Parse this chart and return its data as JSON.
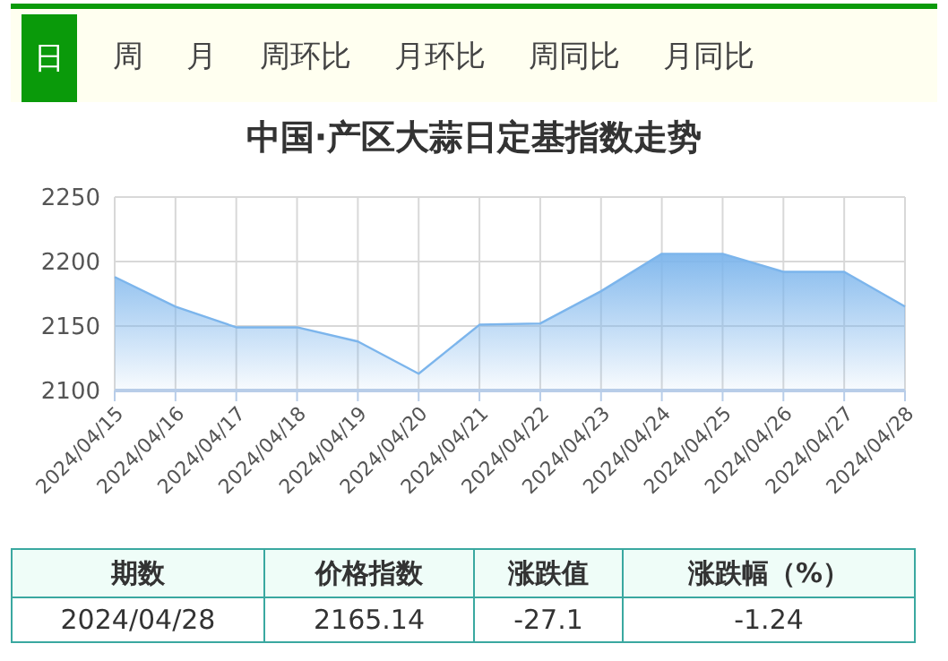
{
  "chart_data": {
    "type": "area",
    "title": "中国·产区大蒜日定基指数走势",
    "categories": [
      "2024/04/15",
      "2024/04/16",
      "2024/04/17",
      "2024/04/18",
      "2024/04/19",
      "2024/04/20",
      "2024/04/21",
      "2024/04/22",
      "2024/04/23",
      "2024/04/24",
      "2024/04/25",
      "2024/04/26",
      "2024/04/27",
      "2024/04/28"
    ],
    "series": [
      {
        "color": "#7cb5ec",
        "values": [
          2188,
          2165,
          2149,
          2149,
          2138,
          2113,
          2151,
          2152,
          2177,
          2206,
          2206,
          2192,
          2192,
          2165.14
        ]
      }
    ],
    "ylim": [
      2100,
      2250
    ],
    "yticks": [
      2100,
      2150,
      2200,
      2250
    ],
    "grid": true,
    "marker": "none",
    "annotations": [
      "日",
      "周",
      "月",
      "周环比",
      "月环比",
      "周同比",
      "月同比",
      "期数",
      "价格指数",
      "涨跌值",
      "涨跌幅（%）",
      "2024/04/28",
      "2165.14",
      "-27.1",
      "-1.24"
    ]
  }
}
